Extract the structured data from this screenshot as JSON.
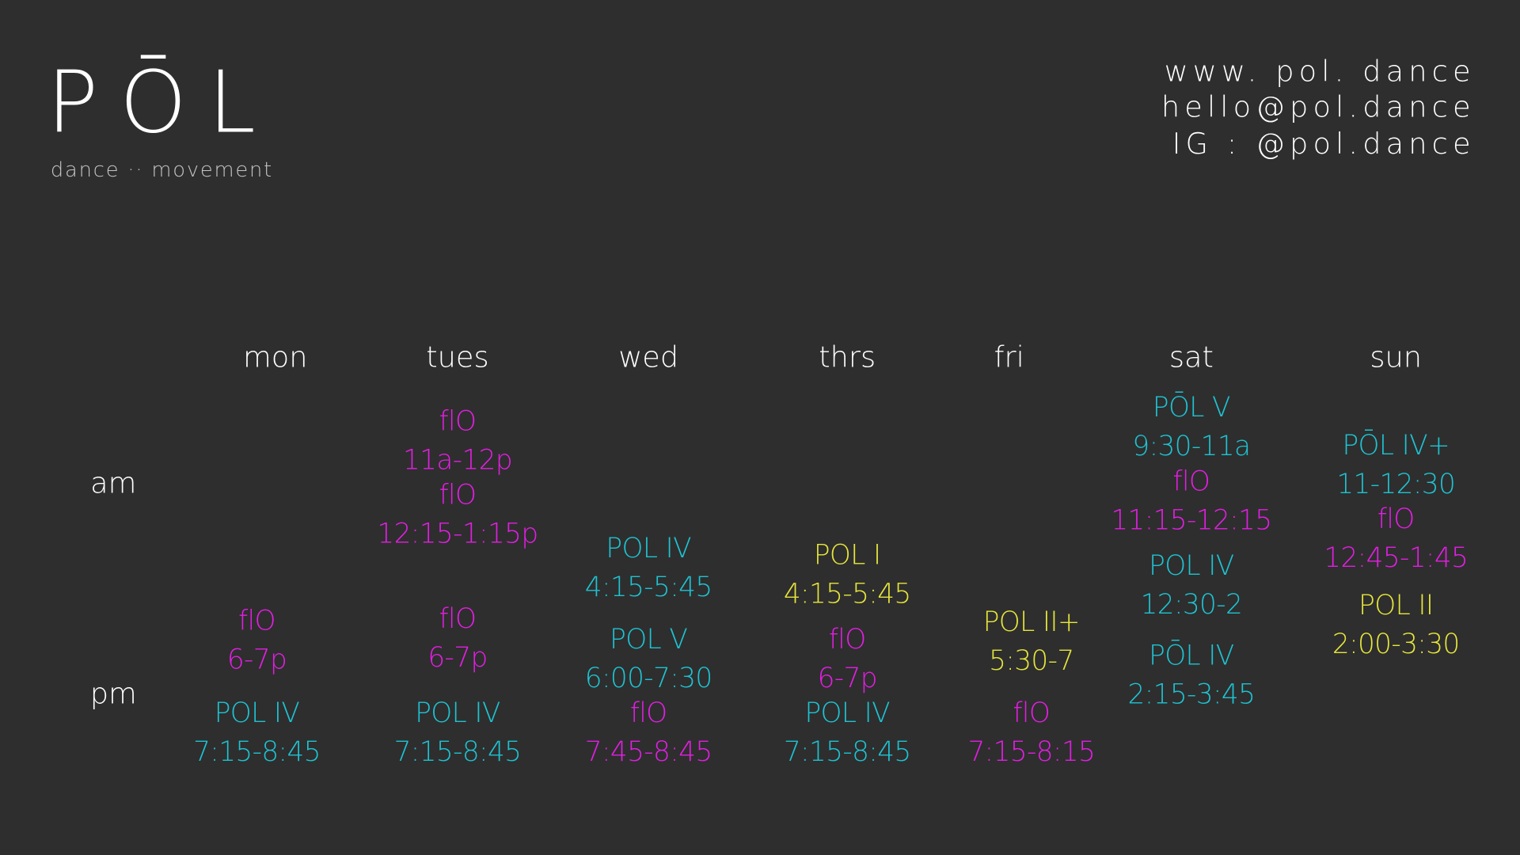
{
  "header": {
    "logo": "PŌL",
    "tagline": "dance ·· movement",
    "contact": [
      "www. pol. dance",
      "hello@pol.dance",
      "IG :  @pol.dance"
    ]
  },
  "schedule": {
    "periods": [
      "am",
      "pm"
    ],
    "days": [
      {
        "name": "mon",
        "classes": [
          {
            "name": "flO",
            "time": "6-7p",
            "color": "#e41ee4"
          },
          {
            "name": "POL IV",
            "time": "7:15-8:45",
            "color": "#1ec3d2"
          }
        ]
      },
      {
        "name": "tues",
        "classes": [
          {
            "name": "flO",
            "time": "11a-12p",
            "color": "#e41ee4"
          },
          {
            "name": "flO",
            "time": "12:15-1:15p",
            "color": "#e41ee4"
          },
          {
            "name": "flO",
            "time": "6-7p",
            "color": "#e41ee4"
          },
          {
            "name": "POL IV",
            "time": "7:15-8:45",
            "color": "#1ec3d2"
          }
        ]
      },
      {
        "name": "wed",
        "classes": [
          {
            "name": "POL IV",
            "time": "4:15-5:45",
            "color": "#1ec3d2"
          },
          {
            "name": "POL V",
            "time": "6:00-7:30",
            "color": "#1ec3d2"
          },
          {
            "name": "flO",
            "time": "7:45-8:45",
            "color": "#e41ee4"
          }
        ]
      },
      {
        "name": "thrs",
        "classes": [
          {
            "name": "POL I",
            "time": "4:15-5:45",
            "color": "#e6e63c"
          },
          {
            "name": "flO",
            "time": "6-7p",
            "color": "#e41ee4"
          },
          {
            "name": "POL IV",
            "time": "7:15-8:45",
            "color": "#1ec3d2"
          }
        ]
      },
      {
        "name": "fri",
        "classes": [
          {
            "name": "POL II+",
            "time": "5:30-7",
            "color": "#e6e63c"
          },
          {
            "name": "flO",
            "time": "7:15-8:15",
            "color": "#e41ee4"
          }
        ]
      },
      {
        "name": "sat",
        "classes": [
          {
            "name": "PŌL V",
            "time": "9:30-11a",
            "color": "#1ec3d2"
          },
          {
            "name": "flO",
            "time": "11:15-12:15",
            "color": "#e41ee4"
          },
          {
            "name": "POL IV",
            "time": "12:30-2",
            "color": "#1ec3d2"
          },
          {
            "name": "PŌL IV",
            "time": "2:15-3:45",
            "color": "#1ec3d2"
          }
        ]
      },
      {
        "name": "sun",
        "classes": [
          {
            "name": "PŌL IV+",
            "time": "11-12:30",
            "color": "#1ec3d2"
          },
          {
            "name": "flO",
            "time": "12:45-1:45",
            "color": "#e41ee4"
          },
          {
            "name": "POL II",
            "time": "2:00-3:30",
            "color": "#e6e63c"
          }
        ]
      }
    ]
  }
}
